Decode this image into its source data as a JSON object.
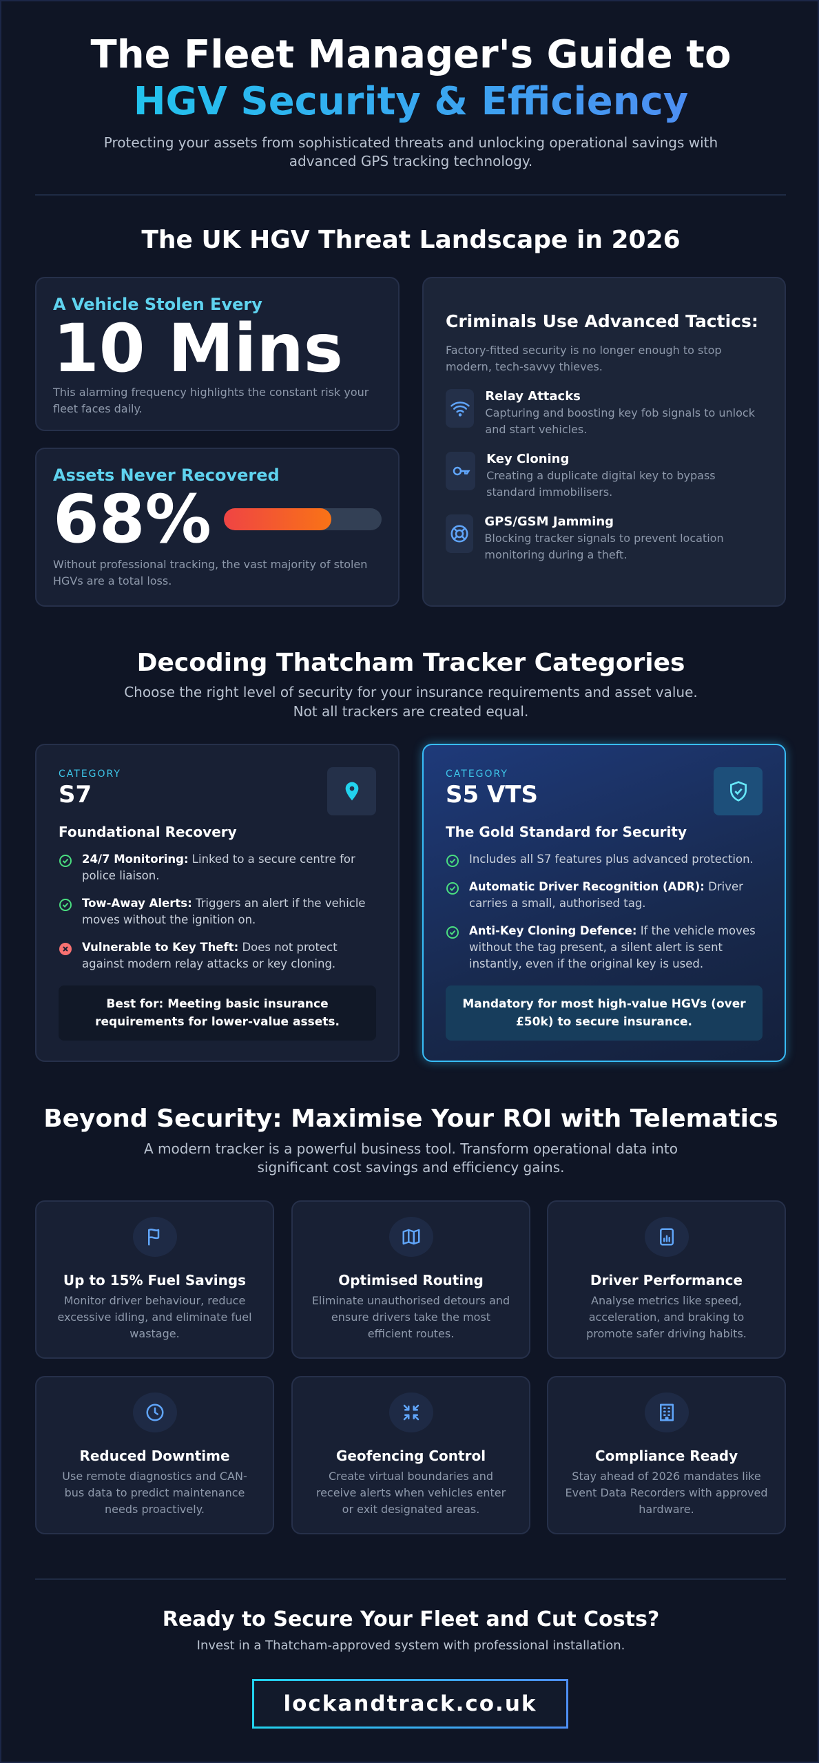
{
  "header": {
    "title_line1": "The Fleet Manager's Guide to",
    "title_line2": "HGV Security & Efficiency",
    "subtitle": "Protecting your assets from sophisticated threats and unlocking operational savings with advanced GPS tracking technology."
  },
  "threats": {
    "heading": "The UK HGV Threat Landscape in 2026",
    "stat1": {
      "label": "A Vehicle Stolen Every",
      "value": "10 Mins",
      "note": "This alarming frequency highlights the constant risk your fleet faces daily."
    },
    "stat2": {
      "label": "Assets Never Recovered",
      "value": {
        "value": 68,
        "label": "68%"
      },
      "note": "Without professional tracking, the vast majority of stolen HGVs are a total loss."
    },
    "tactics": {
      "heading": "Criminals Use Advanced Tactics:",
      "intro": "Factory-fitted security is no longer enough to stop modern, tech-savvy thieves.",
      "items": [
        {
          "title": "Relay Attacks",
          "text": "Capturing and boosting key fob signals to unlock and start vehicles."
        },
        {
          "title": "Key Cloning",
          "text": "Creating a duplicate digital key to bypass standard immobilisers."
        },
        {
          "title": "GPS/GSM Jamming",
          "text": "Blocking tracker signals to prevent location monitoring during a theft."
        }
      ]
    }
  },
  "categories": {
    "heading": "Decoding Thatcham Tracker Categories",
    "subtitle_line1": "Choose the right level of security for your insurance requirements and asset value.",
    "subtitle_line2": "Not all trackers are created equal.",
    "cards": [
      {
        "kicker": "CATEGORY",
        "name": "S7",
        "tagline": "Foundational Recovery",
        "features": [
          {
            "bold": "24/7 Monitoring:",
            "text": "Linked to a secure centre for police liaison."
          },
          {
            "bold": "Tow-Away Alerts:",
            "text": "Triggers an alert if the vehicle moves without the ignition on."
          },
          {
            "bold": "Vulnerable to Key Theft:",
            "text": "Does not protect against modern relay attacks or key cloning."
          }
        ],
        "footer": "Best for: Meeting basic insurance requirements for lower-value assets."
      },
      {
        "kicker": "CATEGORY",
        "name": "S5 VTS",
        "tagline": "The Gold Standard for Security",
        "features": [
          {
            "text": "Includes all S7 features plus advanced protection."
          },
          {
            "bold": "Automatic Driver Recognition (ADR):",
            "text": "Driver carries a small, authorised tag."
          },
          {
            "bold": "Anti-Key Cloning Defence:",
            "text": "If the vehicle moves without the tag present, a silent alert is sent instantly, even if the original key is used."
          }
        ],
        "footer": "Mandatory for most high-value HGVs (over £50k) to secure insurance."
      }
    ]
  },
  "roi": {
    "heading": "Beyond Security: Maximise Your ROI with Telematics",
    "subtitle_line1": "A modern tracker is a powerful business tool. Transform operational data into",
    "subtitle_line2": "significant cost savings and efficiency gains.",
    "items": [
      {
        "title": "Up to 15% Fuel Savings",
        "text": "Monitor driver behaviour, reduce excessive idling, and eliminate fuel wastage."
      },
      {
        "title": "Optimised Routing",
        "text": "Eliminate unauthorised detours and ensure drivers take the most efficient routes."
      },
      {
        "title": "Driver Performance",
        "text": "Analyse metrics like speed, acceleration, and braking to promote safer driving habits."
      },
      {
        "title": "Reduced Downtime",
        "text": "Use remote diagnostics and CAN-bus data to predict maintenance needs proactively."
      },
      {
        "title": "Geofencing Control",
        "text": "Create virtual boundaries and receive alerts when vehicles enter or exit designated areas."
      },
      {
        "title": "Compliance Ready",
        "text": "Stay ahead of 2026 mandates like Event Data Recorders with approved hardware."
      }
    ]
  },
  "cta": {
    "heading": "Ready to Secure Your Fleet and Cut Costs?",
    "subtitle": "Invest in a Thatcham-approved system with professional installation.",
    "button": "lockandtrack.co.uk"
  }
}
